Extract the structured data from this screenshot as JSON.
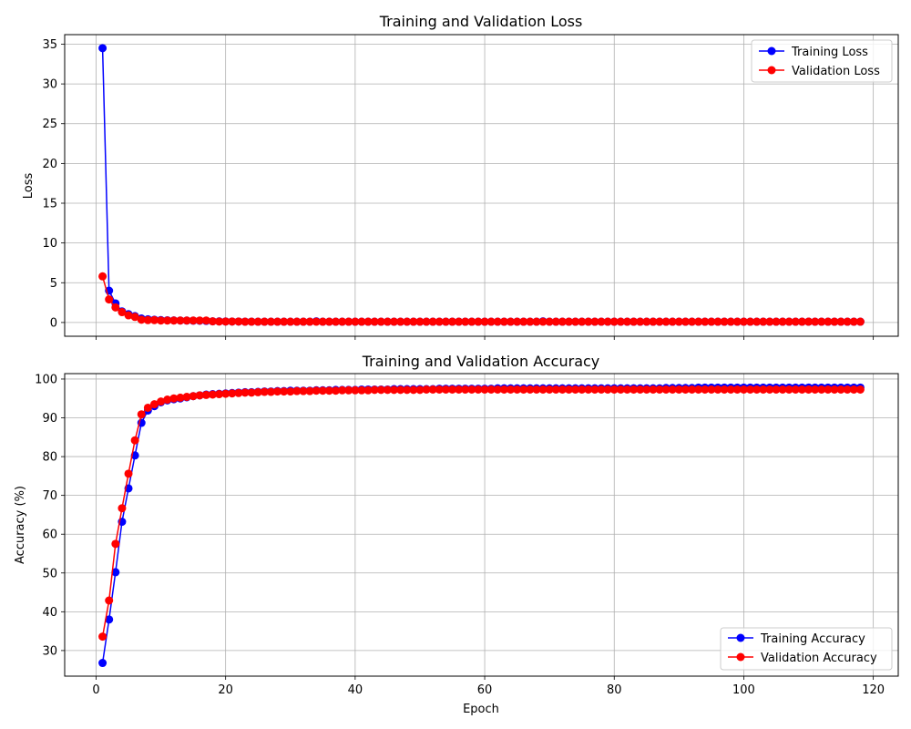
{
  "chart_data": [
    {
      "type": "line",
      "title": "Training and Validation Loss",
      "xlabel": "",
      "ylabel": "Loss",
      "xlim": [
        -4.85,
        123.85
      ],
      "ylim": [
        -1.73,
        36.2
      ],
      "xticks": [
        0,
        20,
        40,
        60,
        80,
        100,
        120
      ],
      "show_xtick_labels": false,
      "yticks": [
        0,
        5,
        10,
        15,
        20,
        25,
        30,
        35
      ],
      "ytick_labels": [
        "0",
        "5",
        "10",
        "15",
        "20",
        "25",
        "30",
        "35"
      ],
      "grid": true,
      "legend_position": "upper right",
      "series": [
        {
          "name": "Training Loss",
          "color": "#0000ff",
          "x_start": 1,
          "x_step": 1,
          "values": [
            34.5,
            4.0,
            2.4,
            1.4,
            1.05,
            0.8,
            0.5,
            0.4,
            0.35,
            0.3,
            0.28,
            0.26,
            0.25,
            0.24,
            0.23,
            0.22,
            0.2,
            0.15,
            0.14,
            0.13,
            0.12,
            0.12,
            0.11,
            0.11,
            0.1,
            0.1,
            0.1,
            0.1,
            0.1,
            0.1,
            0.1,
            0.1,
            0.1,
            0.15,
            0.1,
            0.1,
            0.1,
            0.1,
            0.1,
            0.1,
            0.1,
            0.1,
            0.1,
            0.1,
            0.1,
            0.1,
            0.1,
            0.1,
            0.1,
            0.1,
            0.1,
            0.1,
            0.1,
            0.1,
            0.1,
            0.1,
            0.1,
            0.1,
            0.1,
            0.1,
            0.1,
            0.1,
            0.1,
            0.1,
            0.1,
            0.1,
            0.1,
            0.1,
            0.15,
            0.1,
            0.1,
            0.1,
            0.1,
            0.1,
            0.1,
            0.1,
            0.1,
            0.1,
            0.1,
            0.1,
            0.1,
            0.1,
            0.1,
            0.1,
            0.1,
            0.1,
            0.1,
            0.1,
            0.1,
            0.1,
            0.1,
            0.1,
            0.1,
            0.1,
            0.1,
            0.1,
            0.1,
            0.1,
            0.1,
            0.1,
            0.1,
            0.1,
            0.1,
            0.1,
            0.1,
            0.1,
            0.1,
            0.1,
            0.1,
            0.1,
            0.1,
            0.1,
            0.1,
            0.1,
            0.1,
            0.1,
            0.1,
            0.1
          ]
        },
        {
          "name": "Validation Loss",
          "color": "#ff0000",
          "x_start": 1,
          "x_step": 1,
          "values": [
            5.8,
            2.9,
            1.9,
            1.3,
            0.9,
            0.7,
            0.35,
            0.3,
            0.3,
            0.25,
            0.25,
            0.25,
            0.25,
            0.25,
            0.25,
            0.25,
            0.25,
            0.15,
            0.12,
            0.12,
            0.12,
            0.12,
            0.1,
            0.1,
            0.1,
            0.1,
            0.1,
            0.1,
            0.1,
            0.1,
            0.1,
            0.1,
            0.1,
            0.1,
            0.1,
            0.1,
            0.1,
            0.1,
            0.1,
            0.1,
            0.1,
            0.1,
            0.1,
            0.1,
            0.1,
            0.1,
            0.1,
            0.1,
            0.1,
            0.1,
            0.1,
            0.1,
            0.1,
            0.1,
            0.1,
            0.1,
            0.1,
            0.1,
            0.1,
            0.1,
            0.1,
            0.1,
            0.1,
            0.1,
            0.1,
            0.1,
            0.1,
            0.1,
            0.1,
            0.1,
            0.1,
            0.1,
            0.1,
            0.1,
            0.1,
            0.1,
            0.1,
            0.1,
            0.1,
            0.1,
            0.1,
            0.1,
            0.1,
            0.1,
            0.1,
            0.1,
            0.1,
            0.1,
            0.1,
            0.1,
            0.1,
            0.1,
            0.1,
            0.1,
            0.1,
            0.1,
            0.1,
            0.1,
            0.1,
            0.1,
            0.1,
            0.1,
            0.1,
            0.1,
            0.1,
            0.1,
            0.1,
            0.1,
            0.1,
            0.1,
            0.1,
            0.1,
            0.1,
            0.1,
            0.1,
            0.1,
            0.1,
            0.1
          ]
        }
      ]
    },
    {
      "type": "line",
      "title": "Training and Validation Accuracy",
      "xlabel": "Epoch",
      "ylabel": "Accuracy (%)",
      "xlim": [
        -4.85,
        123.85
      ],
      "ylim": [
        23.4,
        101.4
      ],
      "xticks": [
        0,
        20,
        40,
        60,
        80,
        100,
        120
      ],
      "xtick_labels": [
        "0",
        "20",
        "40",
        "60",
        "80",
        "100",
        "120"
      ],
      "show_xtick_labels": true,
      "yticks": [
        30,
        40,
        50,
        60,
        70,
        80,
        90,
        100
      ],
      "ytick_labels": [
        "30",
        "40",
        "50",
        "60",
        "70",
        "80",
        "90",
        "100"
      ],
      "grid": true,
      "legend_position": "lower right",
      "series": [
        {
          "name": "Training Accuracy",
          "color": "#0000ff",
          "x_start": 1,
          "x_step": 1,
          "values": [
            26.8,
            38.0,
            50.2,
            63.2,
            71.8,
            80.3,
            88.7,
            91.9,
            93.0,
            94.0,
            94.5,
            94.8,
            95.0,
            95.3,
            95.6,
            95.8,
            96.0,
            96.1,
            96.2,
            96.3,
            96.4,
            96.5,
            96.6,
            96.6,
            96.7,
            96.8,
            96.8,
            96.9,
            96.9,
            97.0,
            97.0,
            97.0,
            97.0,
            97.1,
            97.1,
            97.1,
            97.2,
            97.2,
            97.2,
            97.2,
            97.3,
            97.3,
            97.3,
            97.3,
            97.3,
            97.4,
            97.4,
            97.4,
            97.4,
            97.4,
            97.4,
            97.4,
            97.5,
            97.5,
            97.5,
            97.5,
            97.5,
            97.5,
            97.5,
            97.5,
            97.5,
            97.6,
            97.6,
            97.6,
            97.6,
            97.6,
            97.6,
            97.6,
            97.6,
            97.6,
            97.6,
            97.6,
            97.6,
            97.6,
            97.6,
            97.6,
            97.6,
            97.6,
            97.6,
            97.6,
            97.6,
            97.6,
            97.6,
            97.6,
            97.6,
            97.6,
            97.6,
            97.7,
            97.7,
            97.7,
            97.7,
            97.7,
            97.8,
            97.8,
            97.8,
            97.8,
            97.8,
            97.8,
            97.8,
            97.8,
            97.8,
            97.8,
            97.8,
            97.8,
            97.8,
            97.8,
            97.8,
            97.8,
            97.8,
            97.8,
            97.8,
            97.8,
            97.8,
            97.8,
            97.8,
            97.8,
            97.8,
            97.8
          ]
        },
        {
          "name": "Validation Accuracy",
          "color": "#ff0000",
          "x_start": 1,
          "x_step": 1,
          "values": [
            33.6,
            42.9,
            57.5,
            66.7,
            75.6,
            84.2,
            90.9,
            92.6,
            93.5,
            94.2,
            94.7,
            95.0,
            95.2,
            95.4,
            95.6,
            95.8,
            95.9,
            96.0,
            96.1,
            96.2,
            96.3,
            96.4,
            96.5,
            96.5,
            96.6,
            96.7,
            96.7,
            96.8,
            96.8,
            96.8,
            96.9,
            96.9,
            96.9,
            97.0,
            97.0,
            97.0,
            97.0,
            97.1,
            97.1,
            97.1,
            97.1,
            97.1,
            97.2,
            97.2,
            97.2,
            97.2,
            97.2,
            97.2,
            97.2,
            97.2,
            97.3,
            97.3,
            97.3,
            97.3,
            97.3,
            97.3,
            97.3,
            97.3,
            97.3,
            97.3,
            97.3,
            97.3,
            97.3,
            97.3,
            97.3,
            97.3,
            97.3,
            97.3,
            97.3,
            97.3,
            97.3,
            97.3,
            97.3,
            97.3,
            97.3,
            97.3,
            97.3,
            97.3,
            97.3,
            97.3,
            97.3,
            97.3,
            97.3,
            97.3,
            97.3,
            97.3,
            97.3,
            97.3,
            97.3,
            97.3,
            97.3,
            97.3,
            97.3,
            97.3,
            97.3,
            97.3,
            97.3,
            97.3,
            97.3,
            97.3,
            97.3,
            97.3,
            97.3,
            97.3,
            97.3,
            97.3,
            97.3,
            97.3,
            97.3,
            97.3,
            97.3,
            97.3,
            97.3,
            97.3,
            97.3,
            97.3,
            97.3,
            97.3
          ]
        }
      ]
    }
  ]
}
